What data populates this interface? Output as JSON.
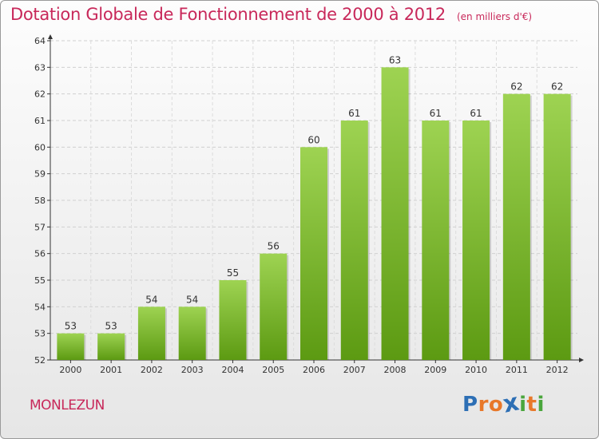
{
  "header": {
    "title": "Dotation Globale de Fonctionnement de 2000 à 2012",
    "unit": "(en milliers d'€)"
  },
  "footer": {
    "commune": "MONLEZUN",
    "brand": "Proxiti",
    "brand_colors": [
      "#2d6fb5",
      "#e8782a",
      "#e8782a",
      "#2d6fb5",
      "#4aa63c",
      "#e8782a",
      "#4aa63c"
    ]
  },
  "colors": {
    "title": "#c8285a",
    "bar_top": "#9ed352",
    "bar_bottom": "#5c9a12",
    "axis": "#333333"
  },
  "chart_data": {
    "type": "bar",
    "title": "Dotation Globale de Fonctionnement de 2000 à 2012",
    "unit": "(en milliers d'€)",
    "categories": [
      "2000",
      "2001",
      "2002",
      "2003",
      "2004",
      "2005",
      "2006",
      "2007",
      "2008",
      "2009",
      "2010",
      "2011",
      "2012"
    ],
    "values": [
      53,
      53,
      54,
      54,
      55,
      56,
      60,
      61,
      63,
      61,
      61,
      62,
      62
    ],
    "ylim": [
      52,
      64
    ],
    "yticks": [
      52,
      53,
      54,
      55,
      56,
      57,
      58,
      59,
      60,
      61,
      62,
      63,
      64
    ],
    "grid": true
  }
}
